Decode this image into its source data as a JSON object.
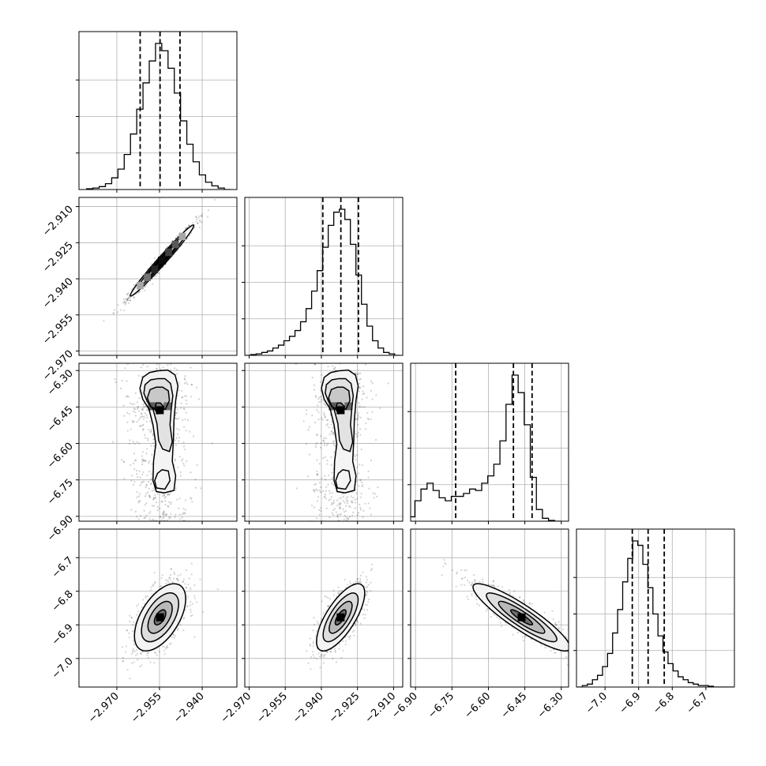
{
  "chart_data": {
    "type": "corner",
    "n_params": 4,
    "grid": true,
    "quantile_style": "dashed",
    "axes": [
      {
        "range": [
          -2.9833,
          -2.9278
        ],
        "ticks": [
          -2.97,
          -2.955,
          -2.94
        ],
        "tick_labels": [
          "−2.970",
          "−2.955",
          "−2.940"
        ]
      },
      {
        "range": [
          -2.9718,
          -2.9062
        ],
        "ticks": [
          -2.97,
          -2.955,
          -2.94,
          -2.925,
          -2.91
        ],
        "tick_labels": [
          "−2.970",
          "−2.955",
          "−2.940",
          "−2.925",
          "−2.910"
        ]
      },
      {
        "range": [
          -6.92,
          -6.27
        ],
        "ticks": [
          -6.9,
          -6.75,
          -6.6,
          -6.45,
          -6.3
        ],
        "tick_labels": [
          "−6.90",
          "−6.75",
          "−6.60",
          "−6.45",
          "−6.30"
        ]
      },
      {
        "range": [
          -7.085,
          -6.615
        ],
        "ticks": [
          -7.0,
          -6.9,
          -6.8,
          -6.7
        ],
        "tick_labels": [
          "−7.0",
          "−6.9",
          "−6.8",
          "−6.7"
        ]
      }
    ],
    "marginals": [
      {
        "quantiles": [
          -2.9618,
          -2.9548,
          -2.9478
        ],
        "bins_x": [
          -2.9795,
          -2.9773,
          -2.9751,
          -2.9729,
          -2.9707,
          -2.9685,
          -2.9663,
          -2.9641,
          -2.9619,
          -2.9597,
          -2.9575,
          -2.9553,
          -2.9531,
          -2.9509,
          -2.9487,
          -2.9465,
          -2.9443,
          -2.9421,
          -2.9399,
          -2.9377,
          -2.9355,
          -2.9333,
          -2.9311
        ],
        "counts": [
          0.005,
          0.01,
          0.02,
          0.04,
          0.08,
          0.14,
          0.24,
          0.38,
          0.55,
          0.73,
          0.88,
          1.0,
          0.95,
          0.83,
          0.66,
          0.47,
          0.31,
          0.19,
          0.1,
          0.05,
          0.025,
          0.01,
          0
        ]
      },
      {
        "quantiles": [
          -2.9394,
          -2.9319,
          -2.9246
        ],
        "bins_x": [
          -2.9705,
          -2.9682,
          -2.9659,
          -2.9636,
          -2.9613,
          -2.959,
          -2.9567,
          -2.9544,
          -2.9521,
          -2.9498,
          -2.9475,
          -2.9452,
          -2.9429,
          -2.9406,
          -2.9383,
          -2.936,
          -2.9337,
          -2.9314,
          -2.9291,
          -2.9268,
          -2.9245,
          -2.9222,
          -2.9199,
          -2.9176,
          -2.9153,
          -2.913,
          -2.9107,
          -2.9084
        ],
        "counts": [
          0,
          0.005,
          0.01,
          0.02,
          0.03,
          0.05,
          0.07,
          0.1,
          0.13,
          0.17,
          0.23,
          0.32,
          0.44,
          0.58,
          0.74,
          0.89,
          0.98,
          1.0,
          0.93,
          0.76,
          0.55,
          0.35,
          0.2,
          0.1,
          0.05,
          0.02,
          0.01,
          0
        ]
      },
      {
        "quantiles": [
          -6.7346,
          -6.497,
          -6.4202
        ],
        "bins_x": [
          -6.915,
          -6.89,
          -6.865,
          -6.84,
          -6.815,
          -6.79,
          -6.765,
          -6.74,
          -6.715,
          -6.69,
          -6.665,
          -6.64,
          -6.615,
          -6.59,
          -6.565,
          -6.54,
          -6.515,
          -6.49,
          -6.465,
          -6.44,
          -6.415,
          -6.39,
          -6.365,
          -6.34,
          -6.315
        ],
        "counts": [
          0.03,
          0.14,
          0.22,
          0.26,
          0.21,
          0.16,
          0.14,
          0.17,
          0.17,
          0.19,
          0.22,
          0.21,
          0.26,
          0.31,
          0.39,
          0.55,
          0.8,
          1.0,
          0.88,
          0.66,
          0.3,
          0.08,
          0.02,
          0.005,
          0
        ]
      },
      {
        "quantiles": [
          -6.9189,
          -6.8718,
          -6.8238
        ],
        "bins_x": [
          -7.075,
          -7.06,
          -7.045,
          -7.03,
          -7.015,
          -7.0,
          -6.985,
          -6.97,
          -6.955,
          -6.94,
          -6.925,
          -6.91,
          -6.895,
          -6.88,
          -6.865,
          -6.85,
          -6.835,
          -6.82,
          -6.805,
          -6.79,
          -6.775,
          -6.76,
          -6.745,
          -6.73,
          -6.715,
          -6.7,
          -6.685,
          -6.67,
          -6.655,
          -6.64,
          -6.625
        ],
        "counts": [
          0,
          0.01,
          0.02,
          0.05,
          0.08,
          0.14,
          0.23,
          0.37,
          0.53,
          0.72,
          0.88,
          1.0,
          0.97,
          0.84,
          0.68,
          0.5,
          0.35,
          0.24,
          0.16,
          0.11,
          0.07,
          0.05,
          0.03,
          0.02,
          0.01,
          0.01,
          0.005,
          0,
          0,
          0,
          0
        ]
      }
    ],
    "joints": [
      {
        "x": 0,
        "y": 1,
        "type": "ellipse",
        "center": [
          -2.9541,
          -2.9324
        ],
        "sx": 0.0056,
        "sy": 0.0074,
        "rho": 0.985,
        "hist_cells": [
          {
            "cx": -2.9541,
            "cy": -2.9324,
            "w": 0.0024,
            "h": 0.0031,
            "level": 0.95
          },
          {
            "cx": -2.9567,
            "cy": -2.9361,
            "w": 0.0024,
            "h": 0.0031,
            "level": 0.85
          },
          {
            "cx": -2.9518,
            "cy": -2.929,
            "w": 0.0024,
            "h": 0.0031,
            "level": 0.75
          },
          {
            "cx": -2.9494,
            "cy": -2.9257,
            "w": 0.0024,
            "h": 0.0031,
            "level": 0.65
          },
          {
            "cx": -2.9593,
            "cy": -2.9394,
            "w": 0.0024,
            "h": 0.0031,
            "level": 0.55
          },
          {
            "cx": -2.9618,
            "cy": -2.9428,
            "w": 0.0024,
            "h": 0.0031,
            "level": 0.35
          },
          {
            "cx": -2.947,
            "cy": -2.9224,
            "w": 0.0024,
            "h": 0.0031,
            "level": 0.35
          }
        ]
      },
      {
        "x": 0,
        "y": 2,
        "type": "blob",
        "center": [
          -2.9549,
          -6.4632
        ],
        "sx": 0.0042,
        "sy": 0.1,
        "rho": 0
      },
      {
        "x": 1,
        "y": 2,
        "type": "blob",
        "center": [
          -2.932,
          -6.4632
        ],
        "sx": 0.0048,
        "sy": 0.1,
        "rho": 0
      },
      {
        "x": 0,
        "y": 3,
        "type": "ellipse",
        "center": [
          -2.9548,
          -6.8776
        ],
        "sx": 0.0045,
        "sy": 0.05,
        "rho": 0.55
      },
      {
        "x": 1,
        "y": 3,
        "type": "ellipse",
        "center": [
          -2.932,
          -6.8776
        ],
        "sx": 0.005,
        "sy": 0.05,
        "rho": 0.72
      },
      {
        "x": 2,
        "y": 3,
        "type": "band",
        "center": [
          -6.4632,
          -6.8776
        ],
        "sx": 0.1,
        "sy": 0.05,
        "rho": -0.9
      }
    ],
    "blob_contours": [
      [
        [
          -0.2,
          1.62
        ],
        [
          -0.9,
          1.55
        ],
        [
          -1.5,
          1.35
        ],
        [
          -1.75,
          0.9
        ],
        [
          -1.5,
          0.45
        ],
        [
          -0.95,
          0.05
        ],
        [
          -0.6,
          -0.6
        ],
        [
          -0.35,
          -1.4
        ],
        [
          -0.55,
          -2.1
        ],
        [
          -0.6,
          -2.9
        ],
        [
          -0.3,
          -3.35
        ],
        [
          0.4,
          -3.4
        ],
        [
          1.25,
          -3.3
        ],
        [
          1.4,
          -2.7
        ],
        [
          1.1,
          -2.1
        ],
        [
          1.2,
          -1.2
        ],
        [
          1.25,
          -0.4
        ],
        [
          1.4,
          0.4
        ],
        [
          1.6,
          1.0
        ],
        [
          1.35,
          1.45
        ],
        [
          0.7,
          1.65
        ]
      ],
      [
        [
          -0.15,
          1.3
        ],
        [
          -0.8,
          1.25
        ],
        [
          -1.3,
          1.05
        ],
        [
          -1.4,
          0.7
        ],
        [
          -1.1,
          0.35
        ],
        [
          -0.6,
          0.05
        ],
        [
          -0.25,
          -0.55
        ],
        [
          -0.1,
          -1.25
        ],
        [
          0.25,
          -1.6
        ],
        [
          0.85,
          -1.7
        ],
        [
          1.1,
          -1.3
        ],
        [
          0.9,
          -0.6
        ],
        [
          1.0,
          0.0
        ],
        [
          1.15,
          0.6
        ],
        [
          0.95,
          1.1
        ],
        [
          0.45,
          1.3
        ]
      ],
      [
        [
          -0.3,
          0.95
        ],
        [
          -0.85,
          0.85
        ],
        [
          -1.1,
          0.5
        ],
        [
          -0.8,
          0.15
        ],
        [
          -0.2,
          0.0
        ],
        [
          0.5,
          0.05
        ],
        [
          0.85,
          0.4
        ],
        [
          0.75,
          0.8
        ],
        [
          0.25,
          0.95
        ]
      ],
      [
        [
          -0.3,
          0.3
        ],
        [
          -0.45,
          0.05
        ],
        [
          -0.2,
          -0.15
        ],
        [
          0.25,
          -0.1
        ],
        [
          0.35,
          0.15
        ],
        [
          0.05,
          0.3
        ]
      ],
      [
        [
          -0.2,
          -2.6
        ],
        [
          -0.45,
          -2.9
        ],
        [
          -0.3,
          -3.2
        ],
        [
          0.45,
          -3.25
        ],
        [
          0.9,
          -2.9
        ],
        [
          0.75,
          -2.5
        ],
        [
          0.2,
          -2.45
        ]
      ]
    ]
  }
}
